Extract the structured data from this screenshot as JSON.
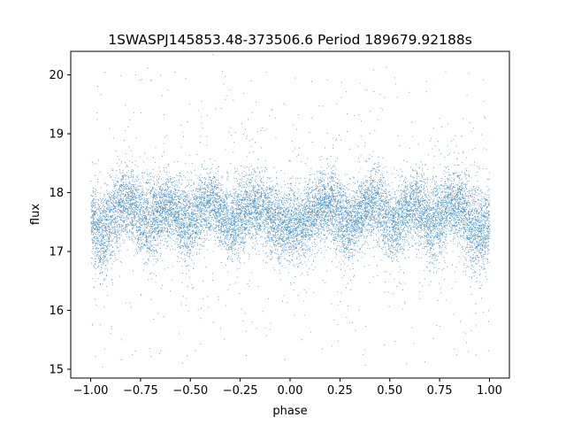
{
  "chart_data": {
    "type": "scatter",
    "title": "1SWASPJ145853.48-373506.6 Period 189679.92188s",
    "xlabel": "phase",
    "ylabel": "flux",
    "xlim": [
      -1.1,
      1.1
    ],
    "ylim": [
      14.85,
      20.4
    ],
    "xticks": [
      -1.0,
      -0.75,
      -0.5,
      -0.25,
      0.0,
      0.25,
      0.5,
      0.75,
      1.0
    ],
    "xtick_labels": [
      "−1.00",
      "−0.75",
      "−0.50",
      "−0.25",
      "0.00",
      "0.25",
      "0.50",
      "0.75",
      "1.00"
    ],
    "yticks": [
      15,
      16,
      17,
      18,
      19,
      20
    ],
    "ytick_labels": [
      "15",
      "16",
      "17",
      "18",
      "19",
      "20"
    ],
    "grid": false,
    "legend": "none",
    "marker_color": "#1f77b4",
    "series_profile": {
      "phase": [
        0.0,
        0.05,
        0.1,
        0.15,
        0.2,
        0.25,
        0.3,
        0.35,
        0.4,
        0.45,
        0.5,
        0.55,
        0.6,
        0.65,
        0.7,
        0.75,
        0.8,
        0.85,
        0.9,
        0.95,
        1.0
      ],
      "flux_center": [
        17.5,
        17.45,
        17.6,
        17.75,
        17.8,
        17.6,
        17.45,
        17.65,
        17.85,
        17.75,
        17.45,
        17.55,
        17.75,
        17.75,
        17.5,
        17.55,
        17.85,
        17.8,
        17.5,
        17.3,
        17.5
      ],
      "flux_spread": [
        0.55,
        0.5,
        0.5,
        0.45,
        0.45,
        0.55,
        0.55,
        0.45,
        0.45,
        0.5,
        0.55,
        0.5,
        0.45,
        0.5,
        0.6,
        0.55,
        0.45,
        0.5,
        0.6,
        0.6,
        0.55
      ]
    },
    "n_points": 14000
  }
}
